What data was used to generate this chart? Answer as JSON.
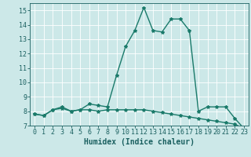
{
  "title": "",
  "xlabel": "Humidex (Indice chaleur)",
  "background_color": "#cce8e8",
  "line_color": "#1a7a6a",
  "grid_color": "#ffffff",
  "series1": {
    "x": [
      0,
      1,
      2,
      3,
      4,
      5,
      6,
      7,
      8,
      9,
      10,
      11,
      12,
      13,
      14,
      15,
      16,
      17,
      18,
      19,
      20,
      21,
      22,
      23
    ],
    "y": [
      7.8,
      7.7,
      8.1,
      8.3,
      8.0,
      8.1,
      8.5,
      8.4,
      8.3,
      10.5,
      12.5,
      13.6,
      15.2,
      13.6,
      13.5,
      14.4,
      14.4,
      13.6,
      8.0,
      8.3,
      8.3,
      8.3,
      7.5,
      6.8
    ]
  },
  "series2": {
    "x": [
      0,
      1,
      2,
      3,
      4,
      5,
      6,
      7,
      8,
      9,
      10,
      11,
      12,
      13,
      14,
      15,
      16,
      17,
      18,
      19,
      20,
      21,
      22,
      23
    ],
    "y": [
      7.8,
      7.7,
      8.1,
      8.2,
      8.0,
      8.1,
      8.1,
      8.0,
      8.1,
      8.1,
      8.1,
      8.1,
      8.1,
      8.0,
      7.9,
      7.8,
      7.7,
      7.6,
      7.5,
      7.4,
      7.3,
      7.2,
      7.1,
      6.8
    ]
  },
  "ylim": [
    7,
    15.5
  ],
  "xlim": [
    -0.5,
    23.5
  ],
  "yticks": [
    7,
    8,
    9,
    10,
    11,
    12,
    13,
    14,
    15
  ],
  "xticks": [
    0,
    1,
    2,
    3,
    4,
    5,
    6,
    7,
    8,
    9,
    10,
    11,
    12,
    13,
    14,
    15,
    16,
    17,
    18,
    19,
    20,
    21,
    22,
    23
  ],
  "xtick_labels": [
    "0",
    "1",
    "2",
    "3",
    "4",
    "5",
    "6",
    "7",
    "8",
    "9",
    "10",
    "11",
    "12",
    "13",
    "14",
    "15",
    "16",
    "17",
    "18",
    "19",
    "20",
    "21",
    "22",
    "23"
  ],
  "marker": "*",
  "marker_size": 3,
  "line_width": 1.0,
  "font_color": "#1a6060",
  "tick_fontsize": 6,
  "xlabel_fontsize": 7
}
